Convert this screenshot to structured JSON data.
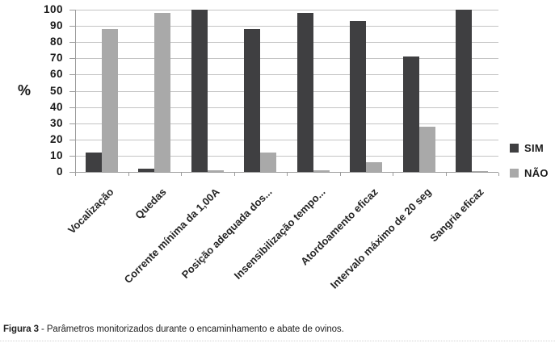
{
  "figure": {
    "caption_label": "Figura 3",
    "caption_text": " - Parâmetros monitorizados durante o encaminhamento e abate de ovinos."
  },
  "chart_data": {
    "type": "bar",
    "title": "",
    "xlabel": "",
    "ylabel": "%",
    "ylim": [
      0,
      100
    ],
    "ytick_step": 10,
    "yticks": [
      0,
      10,
      20,
      30,
      40,
      50,
      60,
      70,
      80,
      90,
      100
    ],
    "grid": true,
    "legend_position": "right",
    "categories": [
      "Vocalização",
      "Quedas",
      "Corrente mínima da 1,00A",
      "Posição adequada dos...",
      "Insensibilização tempo...",
      "Atordoamento eficaz",
      "Intervalo máximo de 20 seg",
      "Sangria eficaz"
    ],
    "series": [
      {
        "name": "SIM",
        "color": "#3f3f41",
        "values": [
          12,
          2,
          100,
          88,
          98,
          93,
          71,
          100
        ]
      },
      {
        "name": "NÃO",
        "color": "#a9a9a9",
        "values": [
          88,
          98,
          1,
          12,
          1,
          6,
          28,
          0.5
        ]
      }
    ],
    "colors": {
      "gridline": "#c4c4c4",
      "axis": "#9c9c9c",
      "text": "#1b1b1b"
    }
  }
}
